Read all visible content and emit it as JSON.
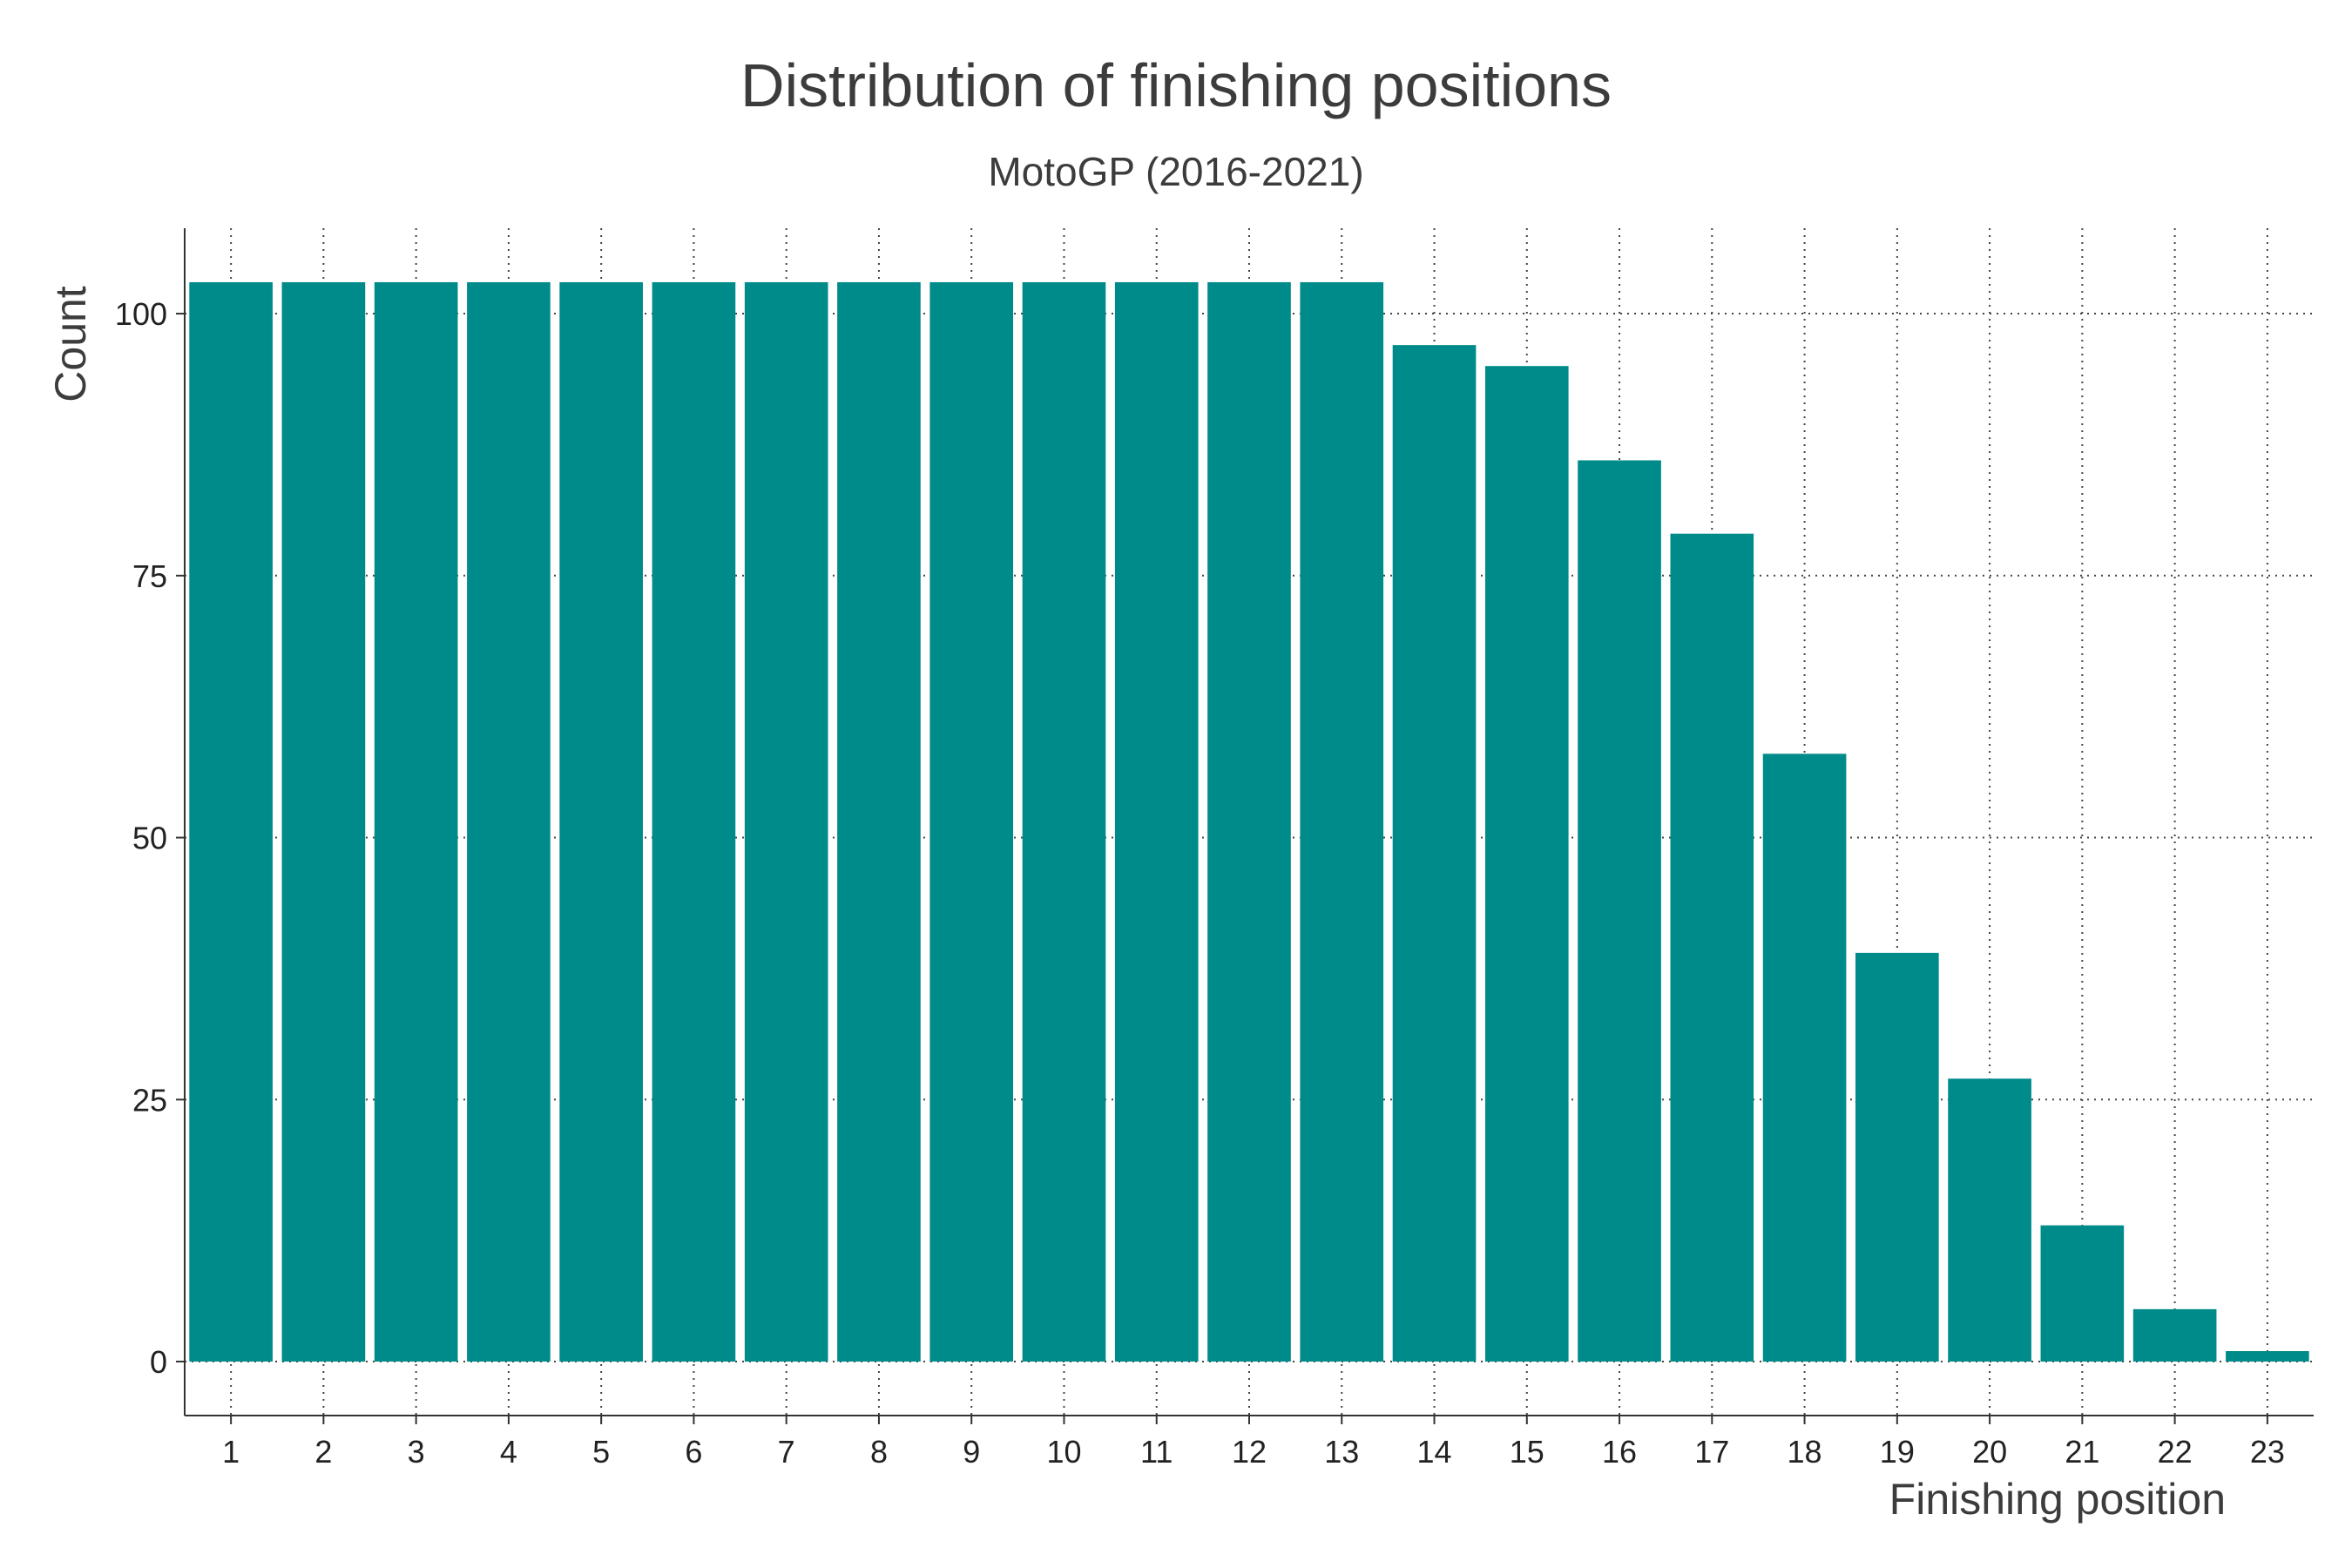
{
  "chart_data": {
    "type": "bar",
    "title": "Distribution of finishing positions",
    "subtitle": "MotoGP (2016-2021)",
    "xlabel": "Finishing position",
    "ylabel": "Count",
    "categories": [
      "1",
      "2",
      "3",
      "4",
      "5",
      "6",
      "7",
      "8",
      "9",
      "10",
      "11",
      "12",
      "13",
      "14",
      "15",
      "16",
      "17",
      "18",
      "19",
      "20",
      "21",
      "22",
      "23"
    ],
    "values": [
      103,
      103,
      103,
      103,
      103,
      103,
      103,
      103,
      103,
      103,
      103,
      103,
      103,
      97,
      95,
      86,
      79,
      58,
      39,
      27,
      13,
      5,
      1
    ],
    "yticks": [
      0,
      25,
      50,
      75,
      100
    ],
    "ylim": [
      -5.15,
      108.15
    ],
    "grid": true,
    "grid_style": "dotted",
    "bar_color": "#008b8b"
  }
}
